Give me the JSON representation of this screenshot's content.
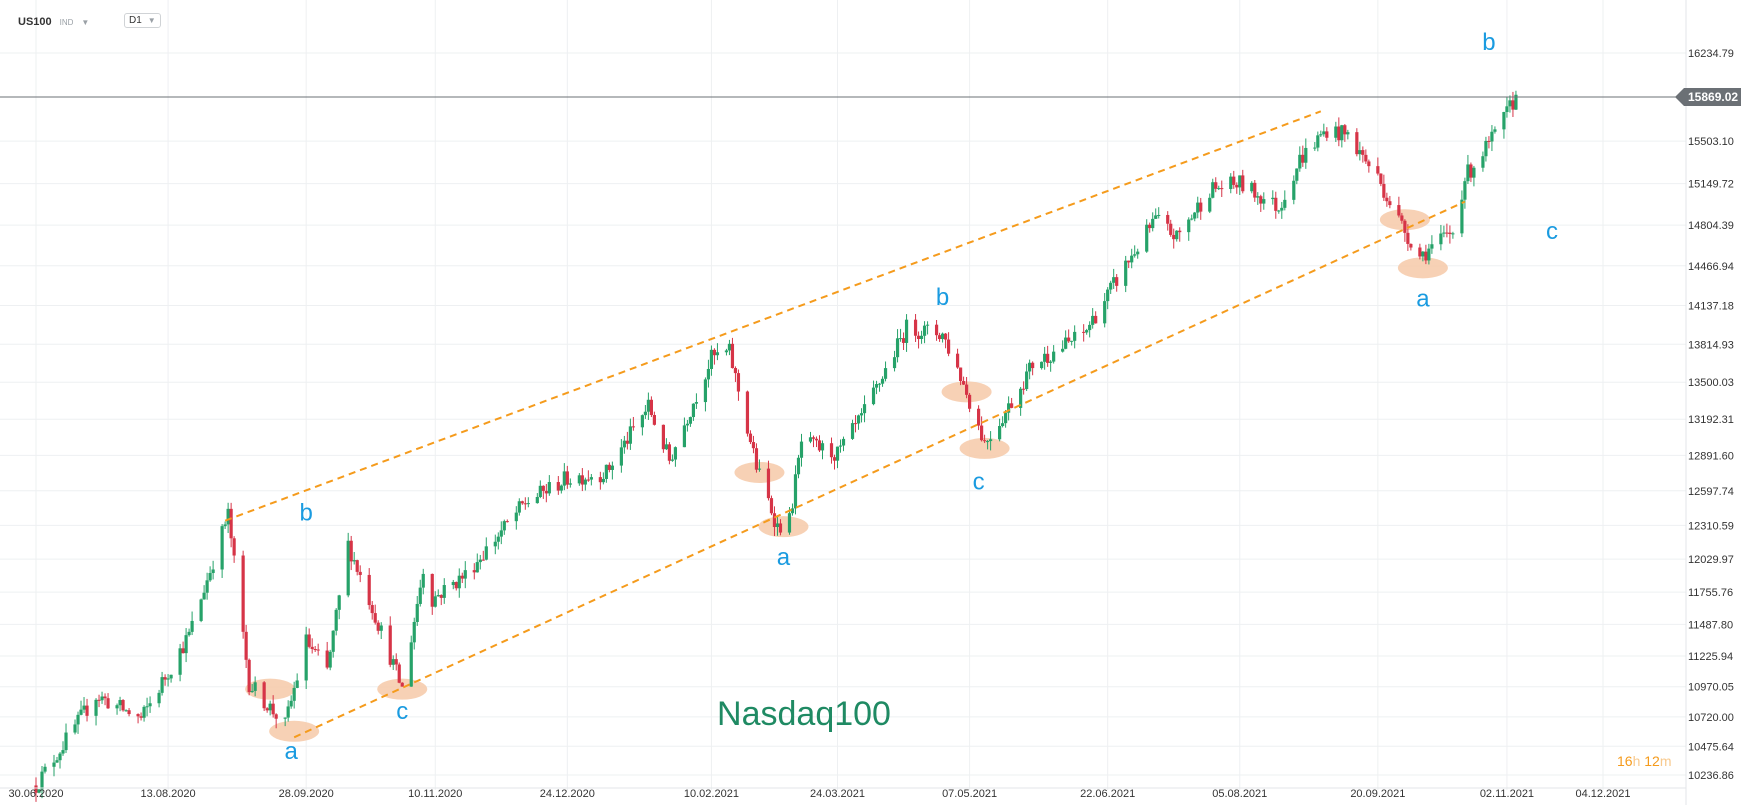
{
  "toolbar": {
    "symbol": "US100",
    "instrument_type": "IND",
    "timeframe": "D1"
  },
  "countdown": {
    "hours": "16",
    "hours_unit": "h",
    "minutes": "12",
    "minutes_unit": "m"
  },
  "colors": {
    "up": "#26a269",
    "down": "#d63447",
    "channel": "#f59b1c",
    "wave_label": "#1a9be0",
    "ellipse": "#f6c9a8",
    "watermark": "#1f8a63",
    "price_tag": "#6b7075"
  },
  "chart_data": {
    "type": "candlestick",
    "title": "Nasdaq100",
    "current_price": "15869.02",
    "x_tick_labels": [
      "30.06.2020",
      "13.08.2020",
      "28.09.2020",
      "10.11.2020",
      "24.12.2020",
      "10.02.2021",
      "24.03.2021",
      "07.05.2021",
      "22.06.2021",
      "05.08.2021",
      "20.09.2021",
      "02.11.2021",
      "04.12.2021"
    ],
    "y_tick_labels": [
      "16234.79",
      "15503.10",
      "15149.72",
      "14804.39",
      "14466.94",
      "14137.18",
      "13814.93",
      "13500.03",
      "13192.31",
      "12891.60",
      "12597.74",
      "12310.59",
      "12029.97",
      "11755.76",
      "11487.80",
      "11225.94",
      "10970.05",
      "10720.00",
      "10475.64",
      "10236.86"
    ],
    "y_range": [
      10236.86,
      16234.79
    ],
    "price_path": [
      [
        "2020-06-30",
        10150
      ],
      [
        "2020-07-20",
        10900
      ],
      [
        "2020-08-04",
        10700
      ],
      [
        "2020-08-20",
        11400
      ],
      [
        "2020-09-02",
        12400
      ],
      [
        "2020-09-09",
        11000
      ],
      [
        "2020-09-21",
        10650
      ],
      [
        "2020-09-28",
        11350
      ],
      [
        "2020-10-05",
        11100
      ],
      [
        "2020-10-12",
        12150
      ],
      [
        "2020-10-19",
        11700
      ],
      [
        "2020-10-30",
        10950
      ],
      [
        "2020-11-06",
        11950
      ],
      [
        "2020-11-09",
        11700
      ],
      [
        "2020-11-20",
        11900
      ],
      [
        "2020-12-10",
        12500
      ],
      [
        "2020-12-24",
        12700
      ],
      [
        "2021-01-06",
        12750
      ],
      [
        "2021-01-20",
        13300
      ],
      [
        "2021-01-27",
        12850
      ],
      [
        "2021-02-10",
        13700
      ],
      [
        "2021-02-16",
        13750
      ],
      [
        "2021-02-25",
        12800
      ],
      [
        "2021-03-04",
        12300
      ],
      [
        "2021-03-08",
        12350
      ],
      [
        "2021-03-12",
        13000
      ],
      [
        "2021-03-24",
        12900
      ],
      [
        "2021-04-01",
        13200
      ],
      [
        "2021-04-16",
        13950
      ],
      [
        "2021-04-28",
        13900
      ],
      [
        "2021-05-04",
        13550
      ],
      [
        "2021-05-12",
        13000
      ],
      [
        "2021-05-19",
        13250
      ],
      [
        "2021-05-28",
        13650
      ],
      [
        "2021-06-14",
        13900
      ],
      [
        "2021-06-30",
        14550
      ],
      [
        "2021-07-08",
        14850
      ],
      [
        "2021-07-15",
        14700
      ],
      [
        "2021-07-26",
        15100
      ],
      [
        "2021-08-05",
        15150
      ],
      [
        "2021-08-18",
        14950
      ],
      [
        "2021-08-25",
        15350
      ],
      [
        "2021-09-03",
        15600
      ],
      [
        "2021-09-10",
        15550
      ],
      [
        "2021-09-20",
        15200
      ],
      [
        "2021-09-28",
        14800
      ],
      [
        "2021-10-04",
        14550
      ],
      [
        "2021-10-15",
        14750
      ],
      [
        "2021-10-19",
        15200
      ],
      [
        "2021-10-29",
        15550
      ],
      [
        "2021-11-05",
        15869
      ]
    ],
    "channel_lines": [
      {
        "name": "upper",
        "points": [
          [
            "2020-09-01",
            12350
          ],
          [
            "2021-09-01",
            15750
          ]
        ]
      },
      {
        "name": "lower",
        "points": [
          [
            "2020-09-24",
            10550
          ],
          [
            "2021-10-19",
            15000
          ]
        ]
      }
    ],
    "wave_labels": [
      {
        "text": "b",
        "date": "2020-09-28",
        "price": 12350
      },
      {
        "text": "a",
        "date": "2020-09-23",
        "price": 10370
      },
      {
        "text": "c",
        "date": "2020-10-30",
        "price": 10700
      },
      {
        "text": "b",
        "date": "2021-04-28",
        "price": 14140
      },
      {
        "text": "a",
        "date": "2021-03-06",
        "price": 11980
      },
      {
        "text": "c",
        "date": "2021-05-10",
        "price": 12610
      },
      {
        "text": "b",
        "date": "2021-10-27",
        "price": 16260
      },
      {
        "text": "a",
        "date": "2021-10-05",
        "price": 14130
      },
      {
        "text": "c",
        "date": "2021-11-17",
        "price": 14690
      }
    ],
    "highlight_ellipses": [
      {
        "date": "2020-09-16",
        "price": 10950
      },
      {
        "date": "2020-09-24",
        "price": 10600
      },
      {
        "date": "2020-10-30",
        "price": 10950
      },
      {
        "date": "2021-02-26",
        "price": 12750
      },
      {
        "date": "2021-03-06",
        "price": 12300
      },
      {
        "date": "2021-05-06",
        "price": 13420
      },
      {
        "date": "2021-05-12",
        "price": 12950
      },
      {
        "date": "2021-09-29",
        "price": 14850
      },
      {
        "date": "2021-10-05",
        "price": 14450
      }
    ]
  }
}
